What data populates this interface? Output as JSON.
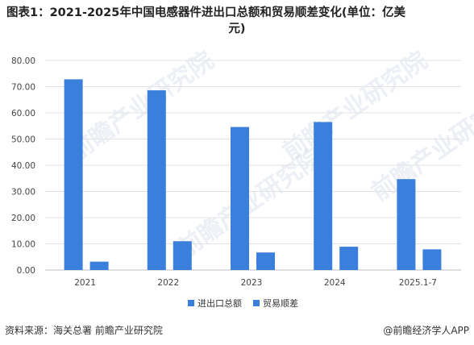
{
  "chart_data": {
    "type": "bar",
    "title_line1": "图表1：2021-2025年中国电感器件进出口总额和贸易顺差变化(单位：亿美",
    "title_line2": "元)",
    "categories": [
      "2021",
      "2022",
      "2023",
      "2024",
      "2025.1-7"
    ],
    "series": [
      {
        "name": "进出口总额",
        "values": [
          72.8,
          68.6,
          54.6,
          56.5,
          34.7
        ],
        "color": "#3a7fdc"
      },
      {
        "name": "贸易顺差",
        "values": [
          3.2,
          11.0,
          6.7,
          8.9,
          7.9
        ],
        "color": "#3a7fdc"
      }
    ],
    "yticks": [
      "0.00",
      "10.00",
      "20.00",
      "30.00",
      "40.00",
      "50.00",
      "60.00",
      "70.00",
      "80.00"
    ],
    "ylim": [
      0,
      80
    ],
    "grid": true,
    "legend_position": "bottom"
  },
  "footer": {
    "source": "资料来源：海关总署 前瞻产业研究院",
    "credit": "@前瞻经济学人APP"
  },
  "watermark": "前瞻产业研究院"
}
